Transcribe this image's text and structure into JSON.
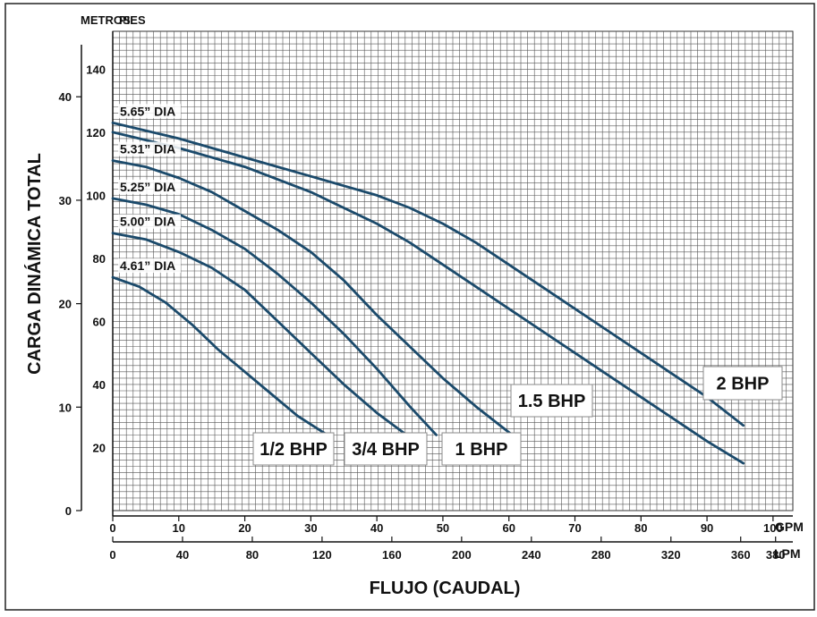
{
  "chart_data": {
    "type": "line",
    "title": "",
    "xlabel": "FLUJO (CAUDAL)",
    "ylabel": "CARGA DINÁMICA TOTAL",
    "x_unit_label": "GPM",
    "x2_unit_label": "LPM",
    "y_unit_label": "PIES",
    "y2_unit_label": "METROS",
    "xlim": [
      0,
      103
    ],
    "ylim": [
      0,
      152
    ],
    "grid": true,
    "line_color": "#1b4a6b",
    "x_ticks": [
      0,
      10,
      20,
      30,
      40,
      50,
      60,
      70,
      80,
      90,
      100
    ],
    "x2_ticks": [
      {
        "value": 0,
        "label": "0"
      },
      {
        "value": 40,
        "label": "40"
      },
      {
        "value": 80,
        "label": "80"
      },
      {
        "value": 120,
        "label": "120"
      },
      {
        "value": 160,
        "label": "160"
      },
      {
        "value": 200,
        "label": "200"
      },
      {
        "value": 240,
        "label": "240"
      },
      {
        "value": 280,
        "label": "280"
      },
      {
        "value": 320,
        "label": "320"
      },
      {
        "value": 360,
        "label": "360"
      },
      {
        "value": 380,
        "label": "380"
      }
    ],
    "y_ticks": [
      20,
      40,
      60,
      80,
      100,
      120,
      140
    ],
    "y2_ticks": [
      0,
      10,
      20,
      30,
      40
    ],
    "series": [
      {
        "name": "4.61” DIA",
        "hp_label": "1/2 BHP",
        "x": [
          0,
          4,
          8,
          12,
          16,
          20,
          24,
          28,
          32.5
        ],
        "y": [
          74,
          71,
          66,
          59,
          51,
          44,
          37,
          30,
          24
        ]
      },
      {
        "name": "5.00” DIA",
        "hp_label": "3/4 BHP",
        "x": [
          0,
          5,
          10,
          15,
          20,
          25,
          30,
          35,
          40,
          44.5
        ],
        "y": [
          88,
          86,
          82,
          77,
          70,
          60,
          50,
          40,
          31,
          24
        ]
      },
      {
        "name": "5.25” DIA",
        "hp_label": "",
        "x": [
          0,
          5,
          10,
          15,
          20,
          25,
          30,
          35,
          40,
          45,
          49
        ],
        "y": [
          99,
          97,
          94,
          89,
          83,
          75,
          66,
          56,
          45,
          33,
          24
        ]
      },
      {
        "name": "5.31” DIA",
        "hp_label": "1 BHP",
        "x": [
          0,
          5,
          10,
          15,
          20,
          25,
          30,
          35,
          40,
          45,
          50,
          55,
          60.5
        ],
        "y": [
          111,
          109,
          105.5,
          101,
          95,
          89,
          82,
          73,
          62,
          52,
          42,
          33,
          24
        ]
      },
      {
        "name": "",
        "hp_label": "1.5 BHP",
        "x": [
          0,
          10,
          20,
          30,
          35,
          40,
          45,
          50,
          55,
          60,
          65,
          70,
          75,
          80,
          85,
          90,
          95.5
        ],
        "y": [
          120,
          115,
          109,
          101,
          96,
          91,
          85,
          78,
          71,
          64,
          57,
          50,
          43,
          36,
          29,
          22,
          15
        ]
      },
      {
        "name": "5.65” DIA",
        "hp_label": "2 BHP",
        "x": [
          0,
          10,
          20,
          30,
          35,
          40,
          45,
          50,
          55,
          60,
          65,
          70,
          75,
          80,
          85,
          90,
          95.5
        ],
        "y": [
          123,
          118,
          112,
          106,
          103,
          100,
          96,
          91,
          85,
          78,
          71,
          64,
          57,
          50,
          43,
          36,
          27
        ]
      }
    ],
    "hp_boxes": [
      "1/2 BHP",
      "3/4 BHP",
      "1 BHP",
      "1.5 BHP",
      "2 BHP"
    ]
  }
}
